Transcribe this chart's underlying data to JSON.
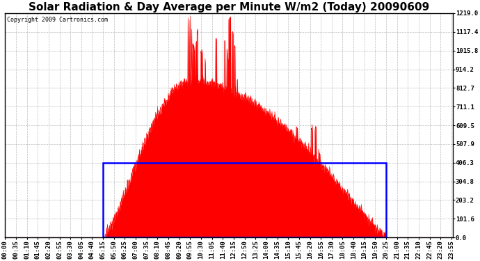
{
  "title": "Solar Radiation & Day Average per Minute W/m2 (Today) 20090609",
  "copyright": "Copyright 2009 Cartronics.com",
  "y_max": 1219.0,
  "y_ticks": [
    0.0,
    101.6,
    203.2,
    304.8,
    406.3,
    507.9,
    609.5,
    711.1,
    812.7,
    914.2,
    1015.8,
    1117.4,
    1219.0
  ],
  "y_tick_labels": [
    "0.0",
    "101.6",
    "203.2",
    "304.8",
    "406.3",
    "507.9",
    "609.5",
    "711.1",
    "812.7",
    "914.2",
    "1015.8",
    "1117.4",
    "1219.0"
  ],
  "x_start": 0,
  "x_end": 1439,
  "day_avg_value": 406.3,
  "day_avg_x_start": 315,
  "day_avg_x_end": 1225,
  "solar_color": "#FF0000",
  "avg_line_color": "#0000FF",
  "background_color": "#FFFFFF",
  "grid_color": "#AAAAAA",
  "title_fontsize": 11,
  "tick_fontsize": 6.5,
  "copyright_fontsize": 6,
  "x_tick_labels": [
    "00:00",
    "00:35",
    "01:10",
    "01:45",
    "02:20",
    "02:55",
    "03:30",
    "04:05",
    "04:40",
    "05:15",
    "05:50",
    "06:25",
    "07:00",
    "07:35",
    "08:10",
    "08:45",
    "09:20",
    "09:55",
    "10:30",
    "11:05",
    "11:40",
    "12:15",
    "12:50",
    "13:25",
    "14:00",
    "14:35",
    "15:10",
    "15:45",
    "16:20",
    "16:55",
    "17:30",
    "18:05",
    "18:40",
    "19:15",
    "19:50",
    "20:25",
    "21:00",
    "21:35",
    "22:10",
    "22:45",
    "23:20",
    "23:55"
  ],
  "x_tick_positions": [
    0,
    35,
    70,
    105,
    140,
    175,
    210,
    245,
    280,
    315,
    350,
    385,
    420,
    455,
    490,
    525,
    560,
    595,
    630,
    665,
    700,
    735,
    770,
    805,
    840,
    875,
    910,
    945,
    980,
    1015,
    1050,
    1085,
    1120,
    1155,
    1190,
    1225,
    1260,
    1295,
    1330,
    1365,
    1400,
    1435
  ],
  "sunrise_min": 315,
  "sunset_min": 1225,
  "peak_min": 595,
  "peak_value": 1219.0
}
